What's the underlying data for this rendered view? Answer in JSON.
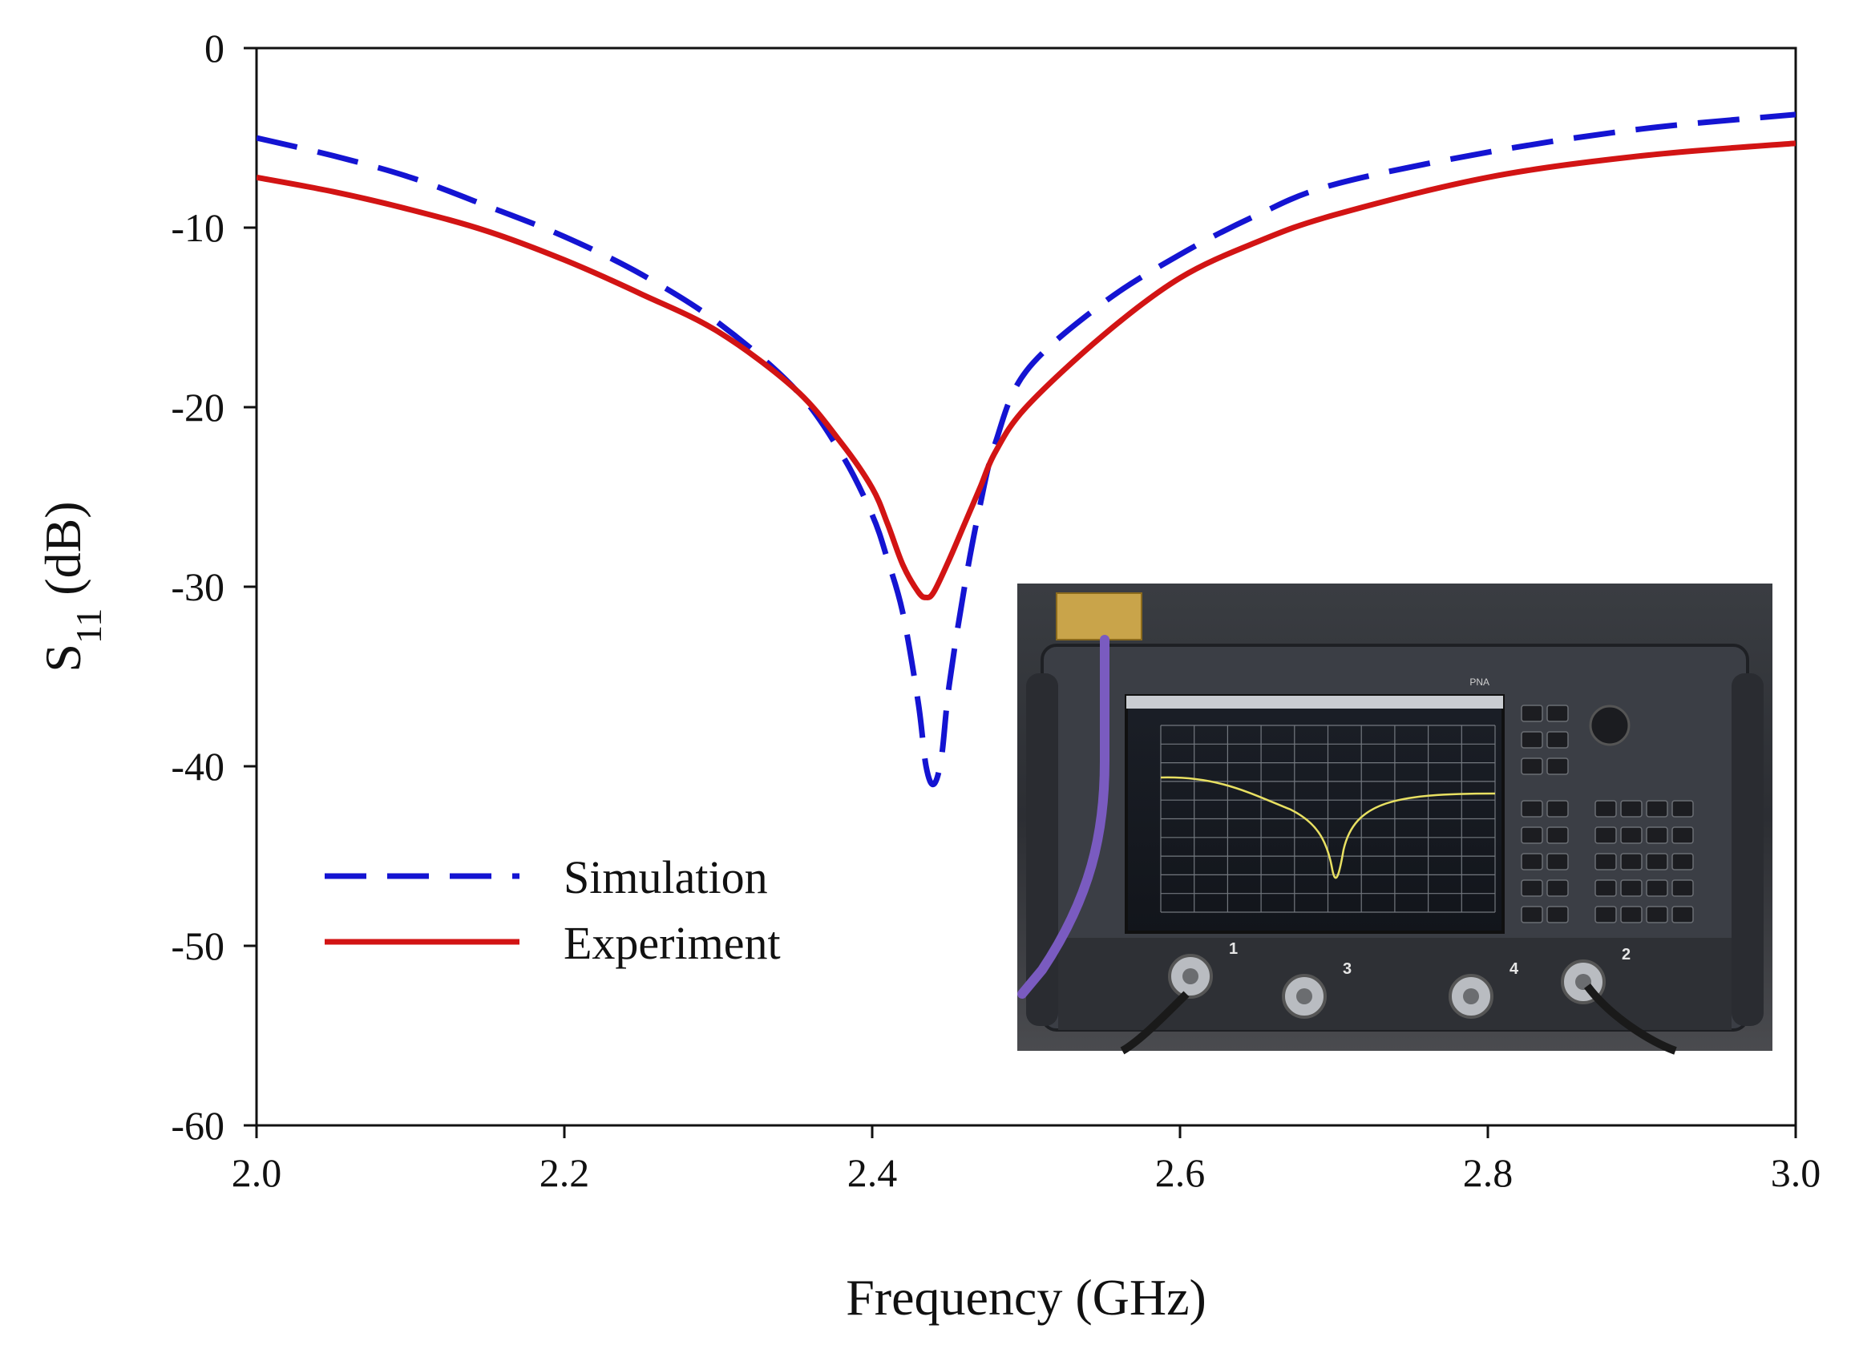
{
  "chart_data": {
    "type": "line",
    "title": "",
    "xlabel": "Frequency (GHz)",
    "ylabel": {
      "base": "S",
      "subscript": "11",
      "suffix": " (dB)"
    },
    "xlim": [
      2.0,
      3.0
    ],
    "ylim": [
      -60,
      0
    ],
    "xticks": [
      {
        "value": 2.0,
        "label": "2.0"
      },
      {
        "value": 2.2,
        "label": "2.2"
      },
      {
        "value": 2.4,
        "label": "2.4"
      },
      {
        "value": 2.6,
        "label": "2.6"
      },
      {
        "value": 2.8,
        "label": "2.8"
      },
      {
        "value": 3.0,
        "label": "3.0"
      }
    ],
    "yticks": [
      {
        "value": 0,
        "label": "0"
      },
      {
        "value": -10,
        "label": "-10"
      },
      {
        "value": -20,
        "label": "-20"
      },
      {
        "value": -30,
        "label": "-30"
      },
      {
        "value": -40,
        "label": "-40"
      },
      {
        "value": -50,
        "label": "-50"
      },
      {
        "value": -60,
        "label": "-60"
      }
    ],
    "grid": false,
    "legend_position": "lower-left",
    "series": [
      {
        "name": "Simulation",
        "color": "#1414d2",
        "style": "dashed",
        "x": [
          2.0,
          2.05,
          2.1,
          2.15,
          2.2,
          2.25,
          2.3,
          2.35,
          2.38,
          2.4,
          2.41,
          2.42,
          2.43,
          2.435,
          2.44,
          2.445,
          2.45,
          2.46,
          2.47,
          2.48,
          2.5,
          2.55,
          2.6,
          2.65,
          2.7,
          2.8,
          2.9,
          3.0
        ],
        "values": [
          -5.0,
          -6.0,
          -7.2,
          -8.8,
          -10.5,
          -12.6,
          -15.3,
          -19.0,
          -22.6,
          -26.0,
          -28.5,
          -31.5,
          -36.5,
          -40.0,
          -41.0,
          -39.5,
          -35.5,
          -30.0,
          -25.5,
          -22.0,
          -18.0,
          -14.2,
          -11.5,
          -9.3,
          -7.6,
          -5.8,
          -4.5,
          -3.7
        ]
      },
      {
        "name": "Experiment",
        "color": "#d21414",
        "style": "solid",
        "x": [
          2.0,
          2.05,
          2.1,
          2.15,
          2.2,
          2.25,
          2.3,
          2.35,
          2.38,
          2.4,
          2.41,
          2.42,
          2.43,
          2.435,
          2.44,
          2.45,
          2.46,
          2.47,
          2.48,
          2.5,
          2.55,
          2.6,
          2.65,
          2.7,
          2.8,
          2.9,
          3.0
        ],
        "values": [
          -7.2,
          -8.0,
          -9.0,
          -10.2,
          -11.8,
          -13.7,
          -15.8,
          -19.0,
          -22.0,
          -24.5,
          -26.5,
          -28.8,
          -30.3,
          -30.6,
          -30.3,
          -28.5,
          -26.5,
          -24.5,
          -22.5,
          -20.0,
          -16.0,
          -12.8,
          -10.8,
          -9.3,
          -7.2,
          -6.0,
          -5.3
        ]
      }
    ],
    "inset": {
      "description_label": "Network analyzer measurement photo",
      "screen_text": "PNA",
      "port_labels": [
        "1",
        "3",
        "4",
        "2"
      ]
    }
  }
}
